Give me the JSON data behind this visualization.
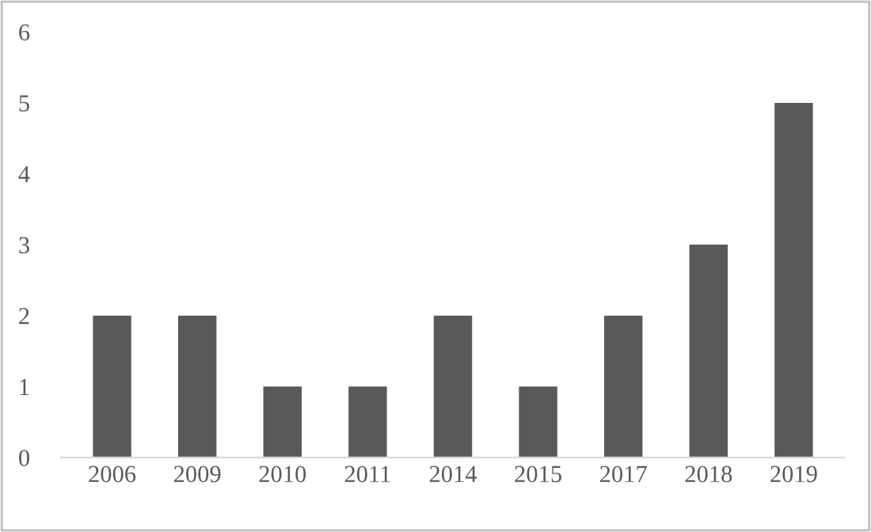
{
  "chart_data": {
    "type": "bar",
    "categories": [
      "2006",
      "2009",
      "2010",
      "2011",
      "2014",
      "2015",
      "2017",
      "2018",
      "2019"
    ],
    "values": [
      2,
      2,
      1,
      1,
      2,
      1,
      2,
      3,
      5
    ],
    "color": "#595959",
    "ylim": [
      0,
      6
    ],
    "yticks": [
      0,
      1,
      2,
      3,
      4,
      5,
      6
    ],
    "grid": false
  }
}
